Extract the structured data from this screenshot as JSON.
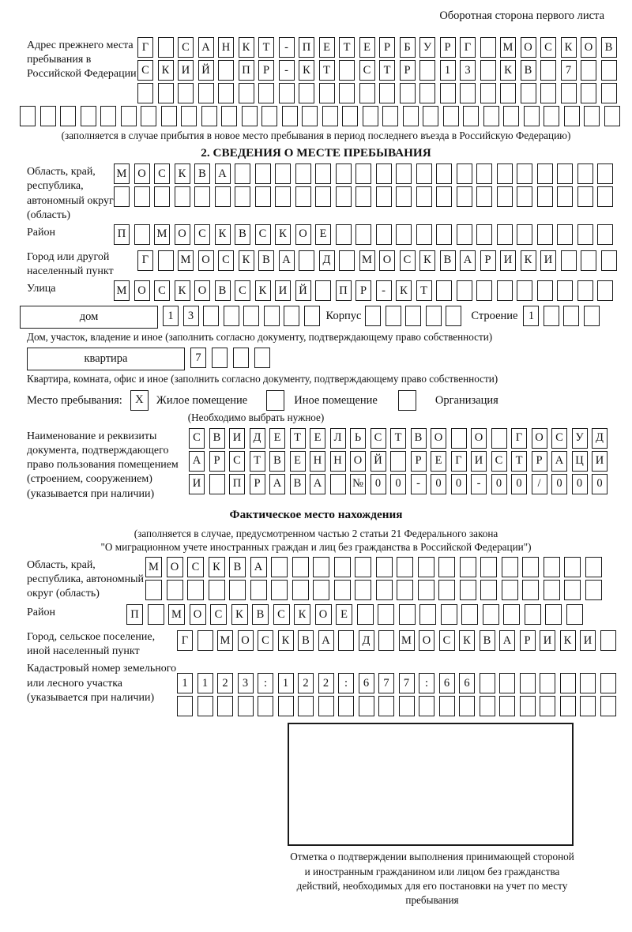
{
  "colors": {
    "ink": "#1a1a1a",
    "paper": "#ffffff"
  },
  "header": {
    "side_note": "Оборотная сторона первого листа"
  },
  "prev_address": {
    "label": "Адрес прежнего места пребывания в Российской Федерации",
    "rows": [
      [
        "Г",
        "",
        "С",
        "А",
        "Н",
        "К",
        "Т",
        "-",
        "П",
        "Е",
        "Т",
        "Е",
        "Р",
        "Б",
        "У",
        "Р",
        "Г",
        "",
        "М",
        "О",
        "С",
        "К",
        "О",
        "В"
      ],
      [
        "С",
        "К",
        "И",
        "Й",
        "",
        "П",
        "Р",
        "-",
        "К",
        "Т",
        "",
        "С",
        "Т",
        "Р",
        "",
        "1",
        "3",
        "",
        "К",
        "В",
        "",
        "7",
        "",
        ""
      ],
      [
        "",
        "",
        "",
        "",
        "",
        "",
        "",
        "",
        "",
        "",
        "",
        "",
        "",
        "",
        "",
        "",
        "",
        "",
        "",
        "",
        "",
        "",
        "",
        ""
      ],
      [
        "",
        "",
        "",
        "",
        "",
        "",
        "",
        "",
        "",
        "",
        "",
        "",
        "",
        "",
        "",
        "",
        "",
        "",
        "",
        "",
        "",
        "",
        "",
        "",
        "",
        "",
        "",
        "",
        "",
        ""
      ]
    ],
    "note": "(заполняется в случае прибытия в новое место пребывания в период последнего въезда в Российскую Федерацию)"
  },
  "section2": {
    "title": "2. СВЕДЕНИЯ О МЕСТЕ ПРЕБЫВАНИЯ"
  },
  "place": {
    "oblast_label": "Область, край, республика, автономный округ (область)",
    "oblast_rows": [
      [
        "М",
        "О",
        "С",
        "К",
        "В",
        "А",
        "",
        "",
        "",
        "",
        "",
        "",
        "",
        "",
        "",
        "",
        "",
        "",
        "",
        "",
        "",
        "",
        "",
        "",
        ""
      ],
      [
        "",
        "",
        "",
        "",
        "",
        "",
        "",
        "",
        "",
        "",
        "",
        "",
        "",
        "",
        "",
        "",
        "",
        "",
        "",
        "",
        "",
        "",
        "",
        "",
        ""
      ]
    ],
    "raion_label": "Район",
    "raion_row": [
      "П",
      "",
      "М",
      "О",
      "С",
      "К",
      "В",
      "С",
      "К",
      "О",
      "Е",
      "",
      "",
      "",
      "",
      "",
      "",
      "",
      "",
      "",
      "",
      "",
      "",
      "",
      ""
    ],
    "gorod_label": "Город или другой населенный пункт",
    "gorod_row": [
      "Г",
      "",
      "М",
      "О",
      "С",
      "К",
      "В",
      "А",
      "",
      "Д",
      "",
      "М",
      "О",
      "С",
      "К",
      "В",
      "А",
      "Р",
      "И",
      "К",
      "И",
      "",
      "",
      ""
    ],
    "ulitsa_label": "Улица",
    "ulitsa_row": [
      "М",
      "О",
      "С",
      "К",
      "О",
      "В",
      "С",
      "К",
      "И",
      "Й",
      "",
      "П",
      "Р",
      "-",
      "К",
      "Т",
      "",
      "",
      "",
      "",
      "",
      "",
      "",
      "",
      ""
    ],
    "dom_label": "дом",
    "dom_cells": [
      "1",
      "3",
      "",
      "",
      "",
      "",
      "",
      ""
    ],
    "korpus_label": "Корпус",
    "korpus_cells": [
      "",
      "",
      "",
      "",
      ""
    ],
    "stroenie_label": "Строение",
    "stroenie_cells": [
      "1",
      "",
      "",
      ""
    ],
    "dom_note": "Дом, участок, владение и иное (заполнить согласно документу, подтверждающему право собственности)",
    "kvartira_label": "квартира",
    "kvartira_cells": [
      "7",
      "",
      "",
      ""
    ],
    "kvartira_note": "Квартира, комната, офис и иное (заполнить согласно документу, подтверждающему право собственности)"
  },
  "stay_type": {
    "label": "Место пребывания:",
    "options": [
      {
        "value": "X",
        "label": "Жилое помещение"
      },
      {
        "value": "",
        "label": "Иное помещение"
      },
      {
        "value": "",
        "label": "Организация"
      }
    ],
    "note": "(Необходимо выбрать нужное)"
  },
  "doc": {
    "label": "Наименование и реквизиты документа, подтверждающего право пользования помещением (строением, сооружением) (указывается при наличии)",
    "rows": [
      [
        "С",
        "В",
        "И",
        "Д",
        "Е",
        "Т",
        "Е",
        "Л",
        "Ь",
        "С",
        "Т",
        "В",
        "О",
        "",
        "О",
        "",
        "Г",
        "О",
        "С",
        "У",
        "Д"
      ],
      [
        "А",
        "Р",
        "С",
        "Т",
        "В",
        "Е",
        "Н",
        "Н",
        "О",
        "Й",
        "",
        "Р",
        "Е",
        "Г",
        "И",
        "С",
        "Т",
        "Р",
        "А",
        "Ц",
        "И"
      ],
      [
        "И",
        "",
        "П",
        "Р",
        "А",
        "В",
        "А",
        "",
        "№",
        "0",
        "0",
        "-",
        "0",
        "0",
        "-",
        "0",
        "0",
        "/",
        "0",
        "0",
        "0"
      ]
    ]
  },
  "fact": {
    "title": "Фактическое место нахождения",
    "note1": "(заполняется в случае, предусмотренном частью 2 статьи 21 Федерального закона",
    "note2": "\"О миграционном учете иностранных граждан и лиц без гражданства в Российской Федерации\")",
    "oblast_label": "Область, край, республика, автономный округ (область)",
    "oblast_rows": [
      [
        "М",
        "О",
        "С",
        "К",
        "В",
        "А",
        "",
        "",
        "",
        "",
        "",
        "",
        "",
        "",
        "",
        "",
        "",
        "",
        "",
        "",
        "",
        ""
      ],
      [
        "",
        "",
        "",
        "",
        "",
        "",
        "",
        "",
        "",
        "",
        "",
        "",
        "",
        "",
        "",
        "",
        "",
        "",
        "",
        "",
        "",
        ""
      ]
    ],
    "raion_label": "Район",
    "raion_row": [
      "П",
      "",
      "М",
      "О",
      "С",
      "К",
      "В",
      "С",
      "К",
      "О",
      "Е",
      "",
      "",
      "",
      "",
      "",
      "",
      "",
      "",
      "",
      "",
      ""
    ],
    "gorod_label": "Город, сельское поселение, иной населенный пункт",
    "gorod_row": [
      "Г",
      "",
      "М",
      "О",
      "С",
      "К",
      "В",
      "А",
      "",
      "Д",
      "",
      "М",
      "О",
      "С",
      "К",
      "В",
      "А",
      "Р",
      "И",
      "К",
      "И",
      ""
    ],
    "kadastr_label": "Кадастровый номер земельного или лесного участка (указывается при наличии)",
    "kadastr_rows": [
      [
        "1",
        "1",
        "2",
        "3",
        ":",
        "1",
        "2",
        "2",
        ":",
        "6",
        "7",
        "7",
        ":",
        "6",
        "6",
        "",
        "",
        "",
        "",
        "",
        "",
        ""
      ],
      [
        "",
        "",
        "",
        "",
        "",
        "",
        "",
        "",
        "",
        "",
        "",
        "",
        "",
        "",
        "",
        "",
        "",
        "",
        "",
        "",
        "",
        ""
      ]
    ]
  },
  "stamp": {
    "caption": "Отметка о подтверждении выполнения принимающей стороной и иностранным гражданином или лицом без гражданства действий, необходимых для его постановки на учет по месту пребывания"
  }
}
